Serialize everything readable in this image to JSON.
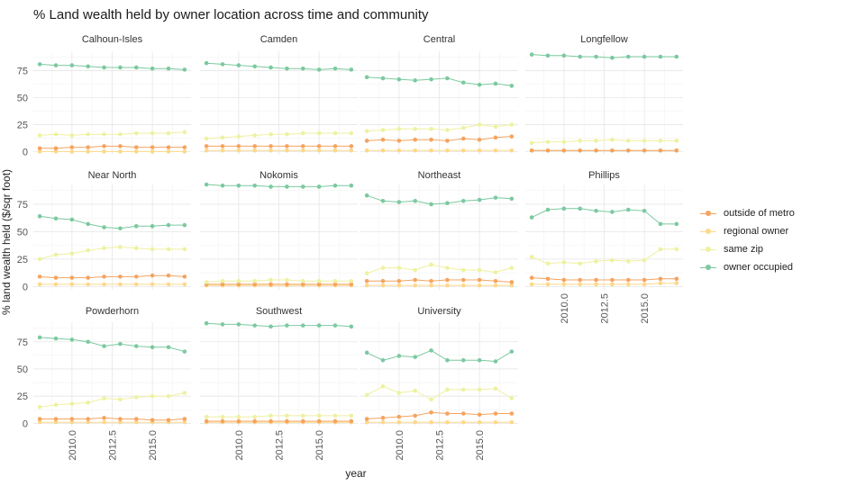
{
  "title": "% Land wealth held by owner location across time and community",
  "xlabel": "year",
  "ylabel": "% land wealth held ($/sqr foot)",
  "colors": {
    "outside of metro": "#f4a460",
    "regional owner": "#fdd88a",
    "same zip": "#eef1a0",
    "owner occupied": "#7cc9a0"
  },
  "legend": [
    "outside of metro",
    "regional owner",
    "same zip",
    "owner occupied"
  ],
  "chart_data": {
    "type": "line",
    "layout": "facet-grid",
    "x": [
      2008,
      2009,
      2010,
      2011,
      2012,
      2013,
      2014,
      2015,
      2016,
      2017
    ],
    "xticks": [
      "2010.0",
      "2012.5",
      "2015.0"
    ],
    "yticks": [
      "0",
      "25",
      "50",
      "75"
    ],
    "ylim": [
      0,
      93
    ],
    "legend_position": "right",
    "grid": true,
    "facets": [
      {
        "name": "Calhoun-Isles",
        "series": [
          {
            "name": "outside of metro",
            "values": [
              3,
              3,
              4,
              4,
              5,
              5,
              4,
              4,
              4,
              4
            ]
          },
          {
            "name": "regional owner",
            "values": [
              0,
              0,
              0,
              0,
              0,
              0,
              0,
              0,
              0,
              0
            ]
          },
          {
            "name": "same zip",
            "values": [
              15,
              16,
              15,
              16,
              16,
              16,
              17,
              17,
              17,
              18
            ]
          },
          {
            "name": "owner occupied",
            "values": [
              81,
              80,
              80,
              79,
              78,
              78,
              78,
              77,
              77,
              76
            ]
          }
        ]
      },
      {
        "name": "Camden",
        "series": [
          {
            "name": "outside of metro",
            "values": [
              5,
              5,
              5,
              5,
              5,
              5,
              5,
              5,
              5,
              5
            ]
          },
          {
            "name": "regional owner",
            "values": [
              1,
              1,
              1,
              1,
              1,
              1,
              1,
              1,
              1,
              1
            ]
          },
          {
            "name": "same zip",
            "values": [
              12,
              13,
              14,
              15,
              16,
              16,
              17,
              17,
              17,
              17
            ]
          },
          {
            "name": "owner occupied",
            "values": [
              82,
              81,
              80,
              79,
              78,
              77,
              77,
              76,
              77,
              76
            ]
          }
        ]
      },
      {
        "name": "Central",
        "series": [
          {
            "name": "outside of metro",
            "values": [
              10,
              11,
              10,
              11,
              11,
              10,
              12,
              11,
              13,
              14
            ]
          },
          {
            "name": "regional owner",
            "values": [
              1,
              1,
              1,
              1,
              1,
              1,
              1,
              1,
              1,
              1
            ]
          },
          {
            "name": "same zip",
            "values": [
              19,
              20,
              21,
              21,
              21,
              20,
              22,
              25,
              23,
              25
            ]
          },
          {
            "name": "owner occupied",
            "values": [
              69,
              68,
              67,
              66,
              67,
              68,
              64,
              62,
              63,
              61
            ]
          }
        ]
      },
      {
        "name": "Longfellow",
        "series": [
          {
            "name": "outside of metro",
            "values": [
              1,
              1,
              1,
              1,
              1,
              1,
              1,
              1,
              1,
              1
            ]
          },
          {
            "name": "regional owner",
            "values": [
              1,
              1,
              1,
              1,
              1,
              1,
              1,
              1,
              1,
              1
            ]
          },
          {
            "name": "same zip",
            "values": [
              8,
              9,
              9,
              10,
              10,
              11,
              10,
              10,
              10,
              10
            ]
          },
          {
            "name": "owner occupied",
            "values": [
              90,
              89,
              89,
              88,
              88,
              87,
              88,
              88,
              88,
              88
            ]
          }
        ]
      },
      {
        "name": "Near North",
        "series": [
          {
            "name": "outside of metro",
            "values": [
              9,
              8,
              8,
              8,
              9,
              9,
              9,
              10,
              10,
              9
            ]
          },
          {
            "name": "regional owner",
            "values": [
              2,
              2,
              2,
              2,
              2,
              2,
              2,
              2,
              2,
              2
            ]
          },
          {
            "name": "same zip",
            "values": [
              25,
              29,
              30,
              33,
              35,
              36,
              35,
              34,
              34,
              34
            ]
          },
          {
            "name": "owner occupied",
            "values": [
              64,
              62,
              61,
              57,
              54,
              53,
              55,
              55,
              56,
              56
            ]
          }
        ]
      },
      {
        "name": "Nokomis",
        "series": [
          {
            "name": "outside of metro",
            "values": [
              2,
              2,
              2,
              2,
              2,
              2,
              2,
              2,
              2,
              2
            ]
          },
          {
            "name": "regional owner",
            "values": [
              1,
              1,
              1,
              1,
              1,
              1,
              1,
              1,
              1,
              1
            ]
          },
          {
            "name": "same zip",
            "values": [
              4,
              5,
              5,
              5,
              6,
              6,
              5,
              5,
              5,
              5
            ]
          },
          {
            "name": "owner occupied",
            "values": [
              93,
              92,
              92,
              92,
              91,
              91,
              91,
              91,
              92,
              92
            ]
          }
        ]
      },
      {
        "name": "Northeast",
        "series": [
          {
            "name": "outside of metro",
            "values": [
              5,
              5,
              5,
              6,
              5,
              6,
              6,
              6,
              5,
              4
            ]
          },
          {
            "name": "regional owner",
            "values": [
              1,
              1,
              1,
              1,
              1,
              1,
              1,
              1,
              1,
              1
            ]
          },
          {
            "name": "same zip",
            "values": [
              12,
              17,
              17,
              15,
              20,
              17,
              15,
              15,
              13,
              17
            ]
          },
          {
            "name": "owner occupied",
            "values": [
              83,
              78,
              77,
              78,
              75,
              76,
              78,
              79,
              81,
              80
            ]
          }
        ]
      },
      {
        "name": "Phillips",
        "series": [
          {
            "name": "outside of metro",
            "values": [
              8,
              7,
              6,
              6,
              6,
              6,
              6,
              6,
              7,
              7
            ]
          },
          {
            "name": "regional owner",
            "values": [
              2,
              2,
              2,
              2,
              2,
              2,
              2,
              2,
              3,
              3
            ]
          },
          {
            "name": "same zip",
            "values": [
              27,
              21,
              22,
              21,
              23,
              24,
              23,
              24,
              34,
              34
            ]
          },
          {
            "name": "owner occupied",
            "values": [
              63,
              70,
              71,
              71,
              69,
              68,
              70,
              69,
              57,
              57
            ]
          }
        ]
      },
      {
        "name": "Powderhorn",
        "series": [
          {
            "name": "outside of metro",
            "values": [
              4,
              4,
              4,
              4,
              5,
              4,
              4,
              3,
              3,
              4
            ]
          },
          {
            "name": "regional owner",
            "values": [
              1,
              1,
              1,
              1,
              1,
              1,
              1,
              1,
              1,
              1
            ]
          },
          {
            "name": "same zip",
            "values": [
              15,
              17,
              18,
              19,
              23,
              22,
              24,
              25,
              25,
              28
            ]
          },
          {
            "name": "owner occupied",
            "values": [
              79,
              78,
              77,
              75,
              71,
              73,
              71,
              70,
              70,
              66
            ]
          }
        ]
      },
      {
        "name": "Southwest",
        "series": [
          {
            "name": "outside of metro",
            "values": [
              2,
              2,
              2,
              2,
              2,
              2,
              2,
              2,
              2,
              2
            ]
          },
          {
            "name": "regional owner",
            "values": [
              1,
              1,
              1,
              1,
              1,
              1,
              1,
              1,
              1,
              1
            ]
          },
          {
            "name": "same zip",
            "values": [
              6,
              6,
              6,
              6,
              7,
              7,
              7,
              7,
              7,
              7
            ]
          },
          {
            "name": "owner occupied",
            "values": [
              92,
              91,
              91,
              90,
              89,
              90,
              90,
              90,
              90,
              89
            ]
          }
        ]
      },
      {
        "name": "University",
        "series": [
          {
            "name": "outside of metro",
            "values": [
              4,
              5,
              6,
              7,
              10,
              9,
              9,
              8,
              9,
              9
            ]
          },
          {
            "name": "regional owner",
            "values": [
              1,
              1,
              1,
              1,
              1,
              1,
              1,
              1,
              1,
              1
            ]
          },
          {
            "name": "same zip",
            "values": [
              26,
              34,
              28,
              30,
              22,
              31,
              31,
              31,
              32,
              23
            ]
          },
          {
            "name": "owner occupied",
            "values": [
              65,
              58,
              62,
              61,
              67,
              58,
              58,
              58,
              57,
              66
            ]
          }
        ]
      }
    ]
  }
}
